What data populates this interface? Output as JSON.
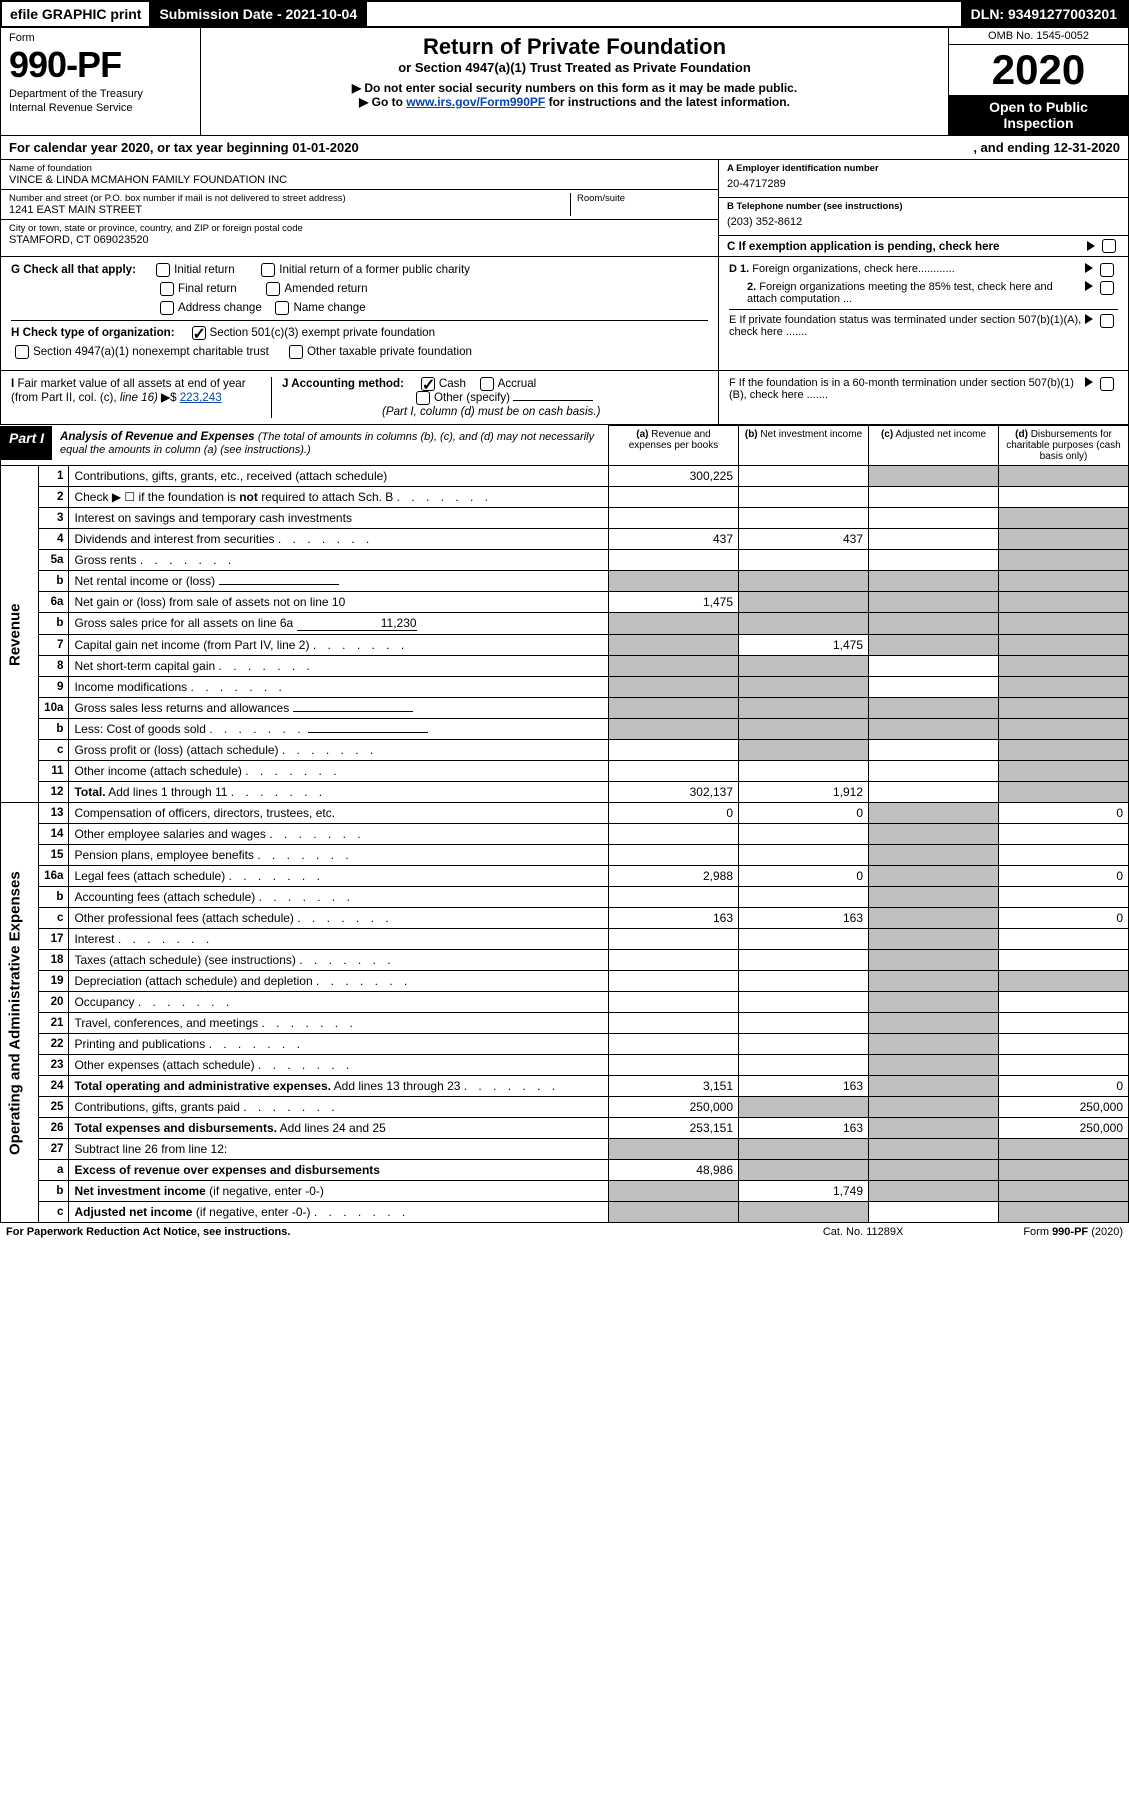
{
  "topbar": {
    "efile": "efile GRAPHIC print",
    "subdate": "Submission Date - 2021-10-04",
    "dln": "DLN: 93491277003201"
  },
  "header": {
    "form_label": "Form",
    "form_number": "990-PF",
    "dept": "Department of the Treasury",
    "irs": "Internal Revenue Service",
    "title": "Return of Private Foundation",
    "subtitle": "or Section 4947(a)(1) Trust Treated as Private Foundation",
    "note1": "▶ Do not enter social security numbers on this form as it may be made public.",
    "note2": "▶ Go to ",
    "link": "www.irs.gov/Form990PF",
    "note2_suffix": " for instructions and the latest information.",
    "omb": "OMB No. 1545-0052",
    "year": "2020",
    "open": "Open to Public Inspection"
  },
  "calyear": {
    "text": "For calendar year 2020, or tax year beginning 01-01-2020",
    "ending": ", and ending 12-31-2020"
  },
  "id": {
    "name_lbl": "Name of foundation",
    "name": "VINCE & LINDA MCMAHON FAMILY FOUNDATION INC",
    "addr_lbl": "Number and street (or P.O. box number if mail is not delivered to street address)",
    "addr": "1241 EAST MAIN STREET",
    "room_lbl": "Room/suite",
    "city_lbl": "City or town, state or province, country, and ZIP or foreign postal code",
    "city": "STAMFORD, CT  069023520",
    "a_lbl": "A Employer identification number",
    "a_val": "20-4717289",
    "b_lbl": "B Telephone number (see instructions)",
    "b_val": "(203) 352-8612",
    "c_lbl": "C If exemption application is pending, check here"
  },
  "g": {
    "label": "G Check all that apply:",
    "opts": [
      "Initial return",
      "Final return",
      "Address change",
      "Initial return of a former public charity",
      "Amended return",
      "Name change"
    ]
  },
  "h": {
    "label": "H Check type of organization:",
    "opt1": "Section 501(c)(3) exempt private foundation",
    "opt2": "Section 4947(a)(1) nonexempt charitable trust",
    "opt3": "Other taxable private foundation"
  },
  "i": {
    "label": "I Fair market value of all assets at end of year (from Part II, col. (c), line 16) ▶ $",
    "val": "  223,243"
  },
  "j": {
    "label": "J Accounting method:",
    "cash": "Cash",
    "accrual": "Accrual",
    "other": "Other (specify)",
    "note": "(Part I, column (d) must be on cash basis.)"
  },
  "right_checks": {
    "d1": "D 1. Foreign organizations, check here............",
    "d2": "2. Foreign organizations meeting the 85% test, check here and attach computation ...",
    "e": "E  If private foundation status was terminated under section 507(b)(1)(A), check here .......",
    "f": "F  If the foundation is in a 60-month termination under section 507(b)(1)(B), check here ......."
  },
  "part1": {
    "label": "Part I",
    "title": "Analysis of Revenue and Expenses",
    "note": " (The total of amounts in columns (b), (c), and (d) may not necessarily equal the amounts in column (a) (see instructions).)",
    "cols": {
      "a": "(a)   Revenue and expenses per books",
      "b": "(b)   Net investment income",
      "c": "(c)   Adjusted net income",
      "d": "(d)   Disbursements for charitable purposes (cash basis only)"
    }
  },
  "sidelabels": {
    "rev": "Revenue",
    "oae": "Operating and Administrative Expenses"
  },
  "rows": [
    {
      "n": "1",
      "d": "Contributions, gifts, grants, etc., received (attach schedule)",
      "a": "300,225",
      "b": "",
      "c": "g",
      "dcol": "g"
    },
    {
      "n": "2",
      "d": "Check ▶ ☐ if the foundation is <b>not</b> required to attach Sch. B",
      "dots": 1,
      "nocells": 1
    },
    {
      "n": "3",
      "d": "Interest on savings and temporary cash investments",
      "a": "",
      "b": "",
      "c": "",
      "dcol": "g"
    },
    {
      "n": "4",
      "d": "Dividends and interest from securities",
      "dots": 1,
      "a": "437",
      "b": "437",
      "c": "",
      "dcol": "g"
    },
    {
      "n": "5a",
      "d": "Gross rents",
      "dots": 1,
      "a": "",
      "b": "",
      "c": "",
      "dcol": "g"
    },
    {
      "n": "b",
      "d": "Net rental income or (loss)",
      "uline": 1,
      "nocells": 1,
      "greyall": 1
    },
    {
      "n": "6a",
      "d": "Net gain or (loss) from sale of assets not on line 10",
      "a": "1,475",
      "b": "g",
      "c": "g",
      "dcol": "g"
    },
    {
      "n": "b",
      "d": "Gross sales price for all assets on line 6a",
      "uval": "11,230",
      "nocells": 1,
      "greyall": 1
    },
    {
      "n": "7",
      "d": "Capital gain net income (from Part IV, line 2)",
      "dots": 1,
      "a": "g",
      "b": "1,475",
      "c": "g",
      "dcol": "g"
    },
    {
      "n": "8",
      "d": "Net short-term capital gain",
      "dots": 1,
      "a": "g",
      "b": "g",
      "c": "",
      "dcol": "g"
    },
    {
      "n": "9",
      "d": "Income modifications",
      "dots": 1,
      "a": "g",
      "b": "g",
      "c": "",
      "dcol": "g"
    },
    {
      "n": "10a",
      "d": "Gross sales less returns and allowances",
      "uline": 1,
      "nocells": 1,
      "greyall": 1
    },
    {
      "n": "b",
      "d": "Less: Cost of goods sold",
      "dots": 1,
      "uline": 1,
      "nocells": 1,
      "greyall": 1
    },
    {
      "n": "c",
      "d": "Gross profit or (loss) (attach schedule)",
      "dots": 1,
      "a": "",
      "b": "g",
      "c": "",
      "dcol": "g"
    },
    {
      "n": "11",
      "d": "Other income (attach schedule)",
      "dots": 1,
      "a": "",
      "b": "",
      "c": "",
      "dcol": "g"
    },
    {
      "n": "12",
      "d": "<b>Total.</b> Add lines 1 through 11",
      "dots": 1,
      "a": "302,137",
      "b": "1,912",
      "c": "",
      "dcol": "g"
    },
    {
      "n": "13",
      "d": "Compensation of officers, directors, trustees, etc.",
      "a": "0",
      "b": "0",
      "c": "g",
      "dcol": "0"
    },
    {
      "n": "14",
      "d": "Other employee salaries and wages",
      "dots": 1,
      "a": "",
      "b": "",
      "c": "g",
      "dcol": ""
    },
    {
      "n": "15",
      "d": "Pension plans, employee benefits",
      "dots": 1,
      "a": "",
      "b": "",
      "c": "g",
      "dcol": ""
    },
    {
      "n": "16a",
      "d": "Legal fees (attach schedule)",
      "dots": 1,
      "a": "2,988",
      "b": "0",
      "c": "g",
      "dcol": "0"
    },
    {
      "n": "b",
      "d": "Accounting fees (attach schedule)",
      "dots": 1,
      "a": "",
      "b": "",
      "c": "g",
      "dcol": ""
    },
    {
      "n": "c",
      "d": "Other professional fees (attach schedule)",
      "dots": 1,
      "a": "163",
      "b": "163",
      "c": "g",
      "dcol": "0"
    },
    {
      "n": "17",
      "d": "Interest",
      "dots": 1,
      "a": "",
      "b": "",
      "c": "g",
      "dcol": ""
    },
    {
      "n": "18",
      "d": "Taxes (attach schedule) (see instructions)",
      "dots": 1,
      "a": "",
      "b": "",
      "c": "g",
      "dcol": ""
    },
    {
      "n": "19",
      "d": "Depreciation (attach schedule) and depletion",
      "dots": 1,
      "a": "",
      "b": "",
      "c": "g",
      "dcol": "g"
    },
    {
      "n": "20",
      "d": "Occupancy",
      "dots": 1,
      "a": "",
      "b": "",
      "c": "g",
      "dcol": ""
    },
    {
      "n": "21",
      "d": "Travel, conferences, and meetings",
      "dots": 1,
      "a": "",
      "b": "",
      "c": "g",
      "dcol": ""
    },
    {
      "n": "22",
      "d": "Printing and publications",
      "dots": 1,
      "a": "",
      "b": "",
      "c": "g",
      "dcol": ""
    },
    {
      "n": "23",
      "d": "Other expenses (attach schedule)",
      "dots": 1,
      "a": "",
      "b": "",
      "c": "g",
      "dcol": ""
    },
    {
      "n": "24",
      "d": "<b>Total operating and administrative expenses.</b> Add lines 13 through 23",
      "dots": 1,
      "a": "3,151",
      "b": "163",
      "c": "g",
      "dcol": "0"
    },
    {
      "n": "25",
      "d": "Contributions, gifts, grants paid",
      "dots": 1,
      "a": "250,000",
      "b": "g",
      "c": "g",
      "dcol": "250,000"
    },
    {
      "n": "26",
      "d": "<b>Total expenses and disbursements.</b> Add lines 24 and 25",
      "a": "253,151",
      "b": "163",
      "c": "g",
      "dcol": "250,000"
    },
    {
      "n": "27",
      "d": "Subtract line 26 from line 12:",
      "nocells": 1,
      "greyall": 1
    },
    {
      "n": "a",
      "d": "<b>Excess of revenue over expenses and disbursements</b>",
      "a": "48,986",
      "b": "g",
      "c": "g",
      "dcol": "g"
    },
    {
      "n": "b",
      "d": "<b>Net investment income</b> (if negative, enter -0-)",
      "a": "g",
      "b": "1,749",
      "c": "g",
      "dcol": "g"
    },
    {
      "n": "c",
      "d": "<b>Adjusted net income</b> (if negative, enter -0-)",
      "dots": 1,
      "a": "g",
      "b": "g",
      "c": "",
      "dcol": "g"
    }
  ],
  "footer": {
    "left": "For Paperwork Reduction Act Notice, see instructions.",
    "mid": "Cat. No. 11289X",
    "right": "Form 990-PF (2020)"
  }
}
